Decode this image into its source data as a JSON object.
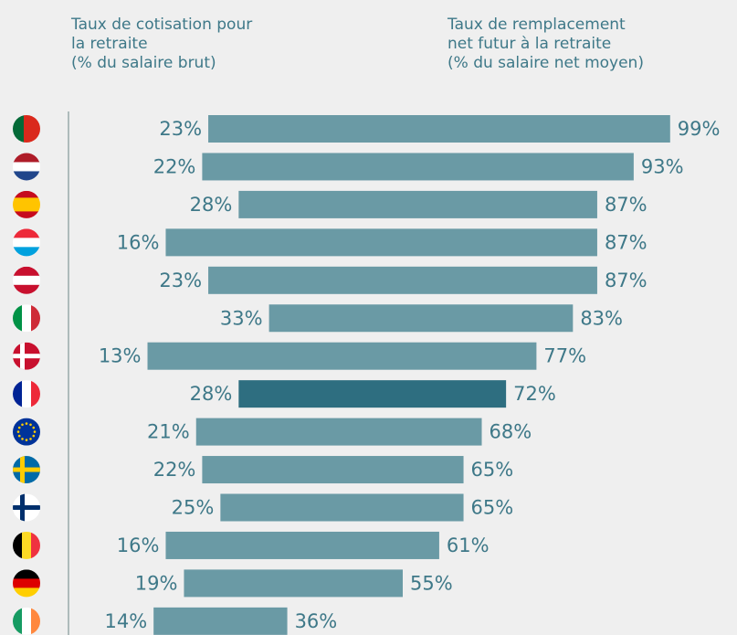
{
  "chart_data": {
    "type": "range-bar",
    "start_header": [
      "Taux de cotisation pour",
      "la retraite",
      "(% du salaire brut)"
    ],
    "end_header": [
      "Taux de remplacement",
      "net futur à la retraite",
      "(% du salaire net moyen)"
    ],
    "start_values": [
      23,
      22,
      28,
      16,
      23,
      33,
      13,
      28,
      21,
      22,
      25,
      16,
      19,
      14
    ],
    "start_value_labels": [
      "23%",
      "22%",
      "28%",
      "16%",
      "23%",
      "33%",
      "13%",
      "28%",
      "21%",
      "22%",
      "25%",
      "16%",
      "19%",
      "14%"
    ],
    "end_values": [
      99,
      93,
      87,
      87,
      87,
      83,
      77,
      72,
      68,
      65,
      65,
      61,
      55,
      36
    ],
    "end_value_labels": [
      "99%",
      "93%",
      "87%",
      "87%",
      "87%",
      "83%",
      "77%",
      "72%",
      "68%",
      "65%",
      "65%",
      "61%",
      "55%",
      "36%"
    ],
    "color": "#6a9aa5",
    "highlight_color": "#2e6e80",
    "highlight": 7,
    "xlim": [
      0,
      110
    ]
  }
}
